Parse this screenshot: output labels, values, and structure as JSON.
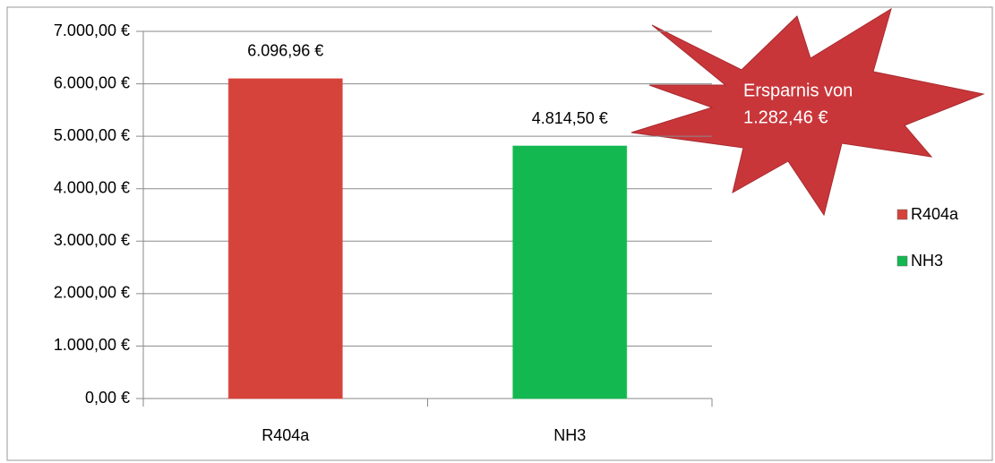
{
  "chart_data": {
    "type": "bar",
    "categories": [
      "R404a",
      "NH3"
    ],
    "values": [
      6096.96,
      4814.5
    ],
    "value_labels": [
      "6.096,96 €",
      "4.814,50 €"
    ],
    "colors": [
      "#d6433b",
      "#14b850"
    ],
    "ylim": [
      0,
      7000
    ],
    "yticks": [
      {
        "value": 0,
        "label": "0,00 €"
      },
      {
        "value": 1000,
        "label": "1.000,00 €"
      },
      {
        "value": 2000,
        "label": "2.000,00 €"
      },
      {
        "value": 3000,
        "label": "3.000,00 €"
      },
      {
        "value": 4000,
        "label": "4.000,00 €"
      },
      {
        "value": 5000,
        "label": "5.000,00 €"
      },
      {
        "value": 6000,
        "label": "6.000,00 €"
      },
      {
        "value": 7000,
        "label": "7.000,00 €"
      }
    ],
    "grid": true,
    "legend": "right",
    "annotation": [
      "Ersparnis von",
      "1.282,46 €"
    ]
  }
}
